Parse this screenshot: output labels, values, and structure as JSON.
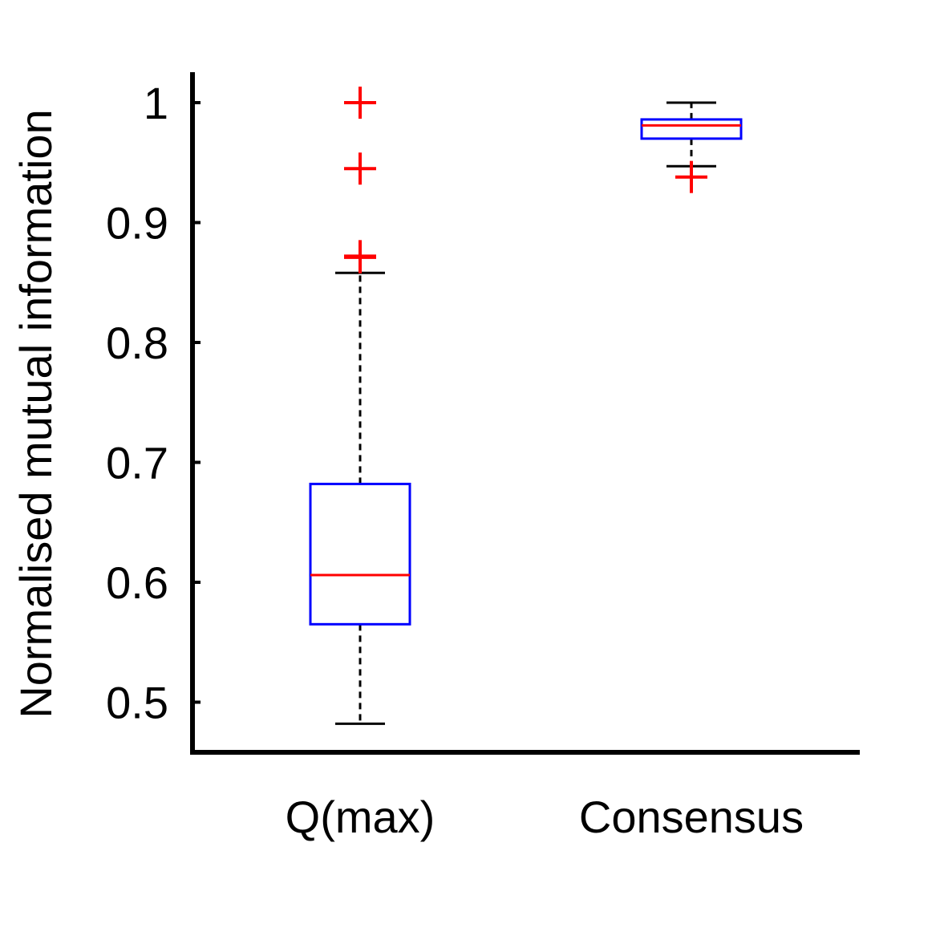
{
  "chart_data": {
    "type": "box",
    "title": "",
    "xlabel": "",
    "ylabel": "Normalised mutual information",
    "ylim": [
      0.457,
      1.025
    ],
    "yticks": [
      0.5,
      0.6,
      0.7,
      0.8,
      0.9,
      1
    ],
    "ytick_labels": [
      "0.5",
      "0.6",
      "0.7",
      "0.8",
      "0.9",
      "1"
    ],
    "grid": false,
    "legend": "none",
    "categories": [
      "Q(max)",
      "Consensus"
    ],
    "boxes": [
      {
        "category": "Q(max)",
        "whisker_low": 0.482,
        "q1": 0.565,
        "median": 0.606,
        "q3": 0.682,
        "whisker_high": 0.858,
        "outliers": [
          0.871,
          0.872,
          0.945,
          1.0
        ]
      },
      {
        "category": "Consensus",
        "whisker_low": 0.947,
        "q1": 0.97,
        "median": 0.981,
        "q3": 0.986,
        "whisker_high": 1.0,
        "outliers": [
          0.938
        ]
      }
    ],
    "colors": {
      "box": "#0000ff",
      "median": "#ff0000",
      "outlier": "#ff0000",
      "whisker": "#000000",
      "axis": "#000000"
    }
  }
}
